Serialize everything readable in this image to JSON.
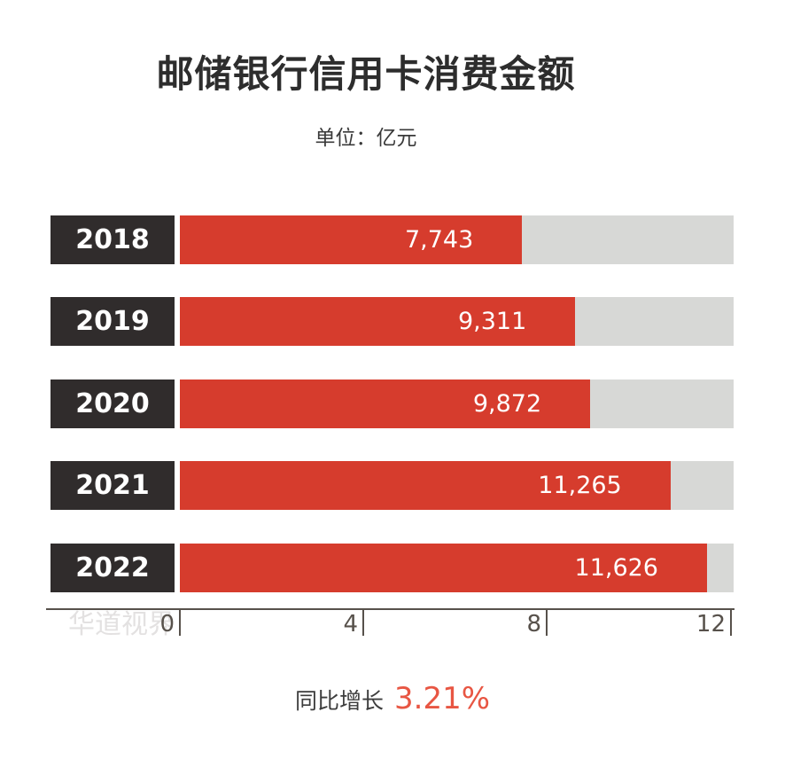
{
  "chart_data": {
    "type": "bar",
    "orientation": "horizontal",
    "title": "邮储银行信用卡消费金额",
    "subtitle": "单位：亿元",
    "categories": [
      "2018",
      "2019",
      "2020",
      "2021",
      "2022"
    ],
    "values": [
      7743,
      9311,
      9872,
      11265,
      11626
    ],
    "value_labels": [
      "7,743",
      "9,311",
      "9,872",
      "11,265",
      "11,626"
    ],
    "bar_pcts": [
      61.8,
      71.4,
      74.1,
      88.6,
      95.2
    ],
    "axis": {
      "tick_labels": [
        "0",
        "4",
        "8",
        "12"
      ],
      "range": [
        0,
        12
      ],
      "grid": false
    },
    "legend": null
  },
  "footer": {
    "label": "同比增长",
    "value": "3.21%"
  },
  "watermark": {
    "text": "华道视界"
  },
  "colors": {
    "bar_red": "#d63c2d",
    "year_box_dark": "#302c2c",
    "track_gray": "#d7d8d6",
    "axis_gray": "#57514b",
    "accent_red": "#e85643",
    "title_dark": "#2d2d2d",
    "watermark_gray": "#e3e1e1"
  }
}
